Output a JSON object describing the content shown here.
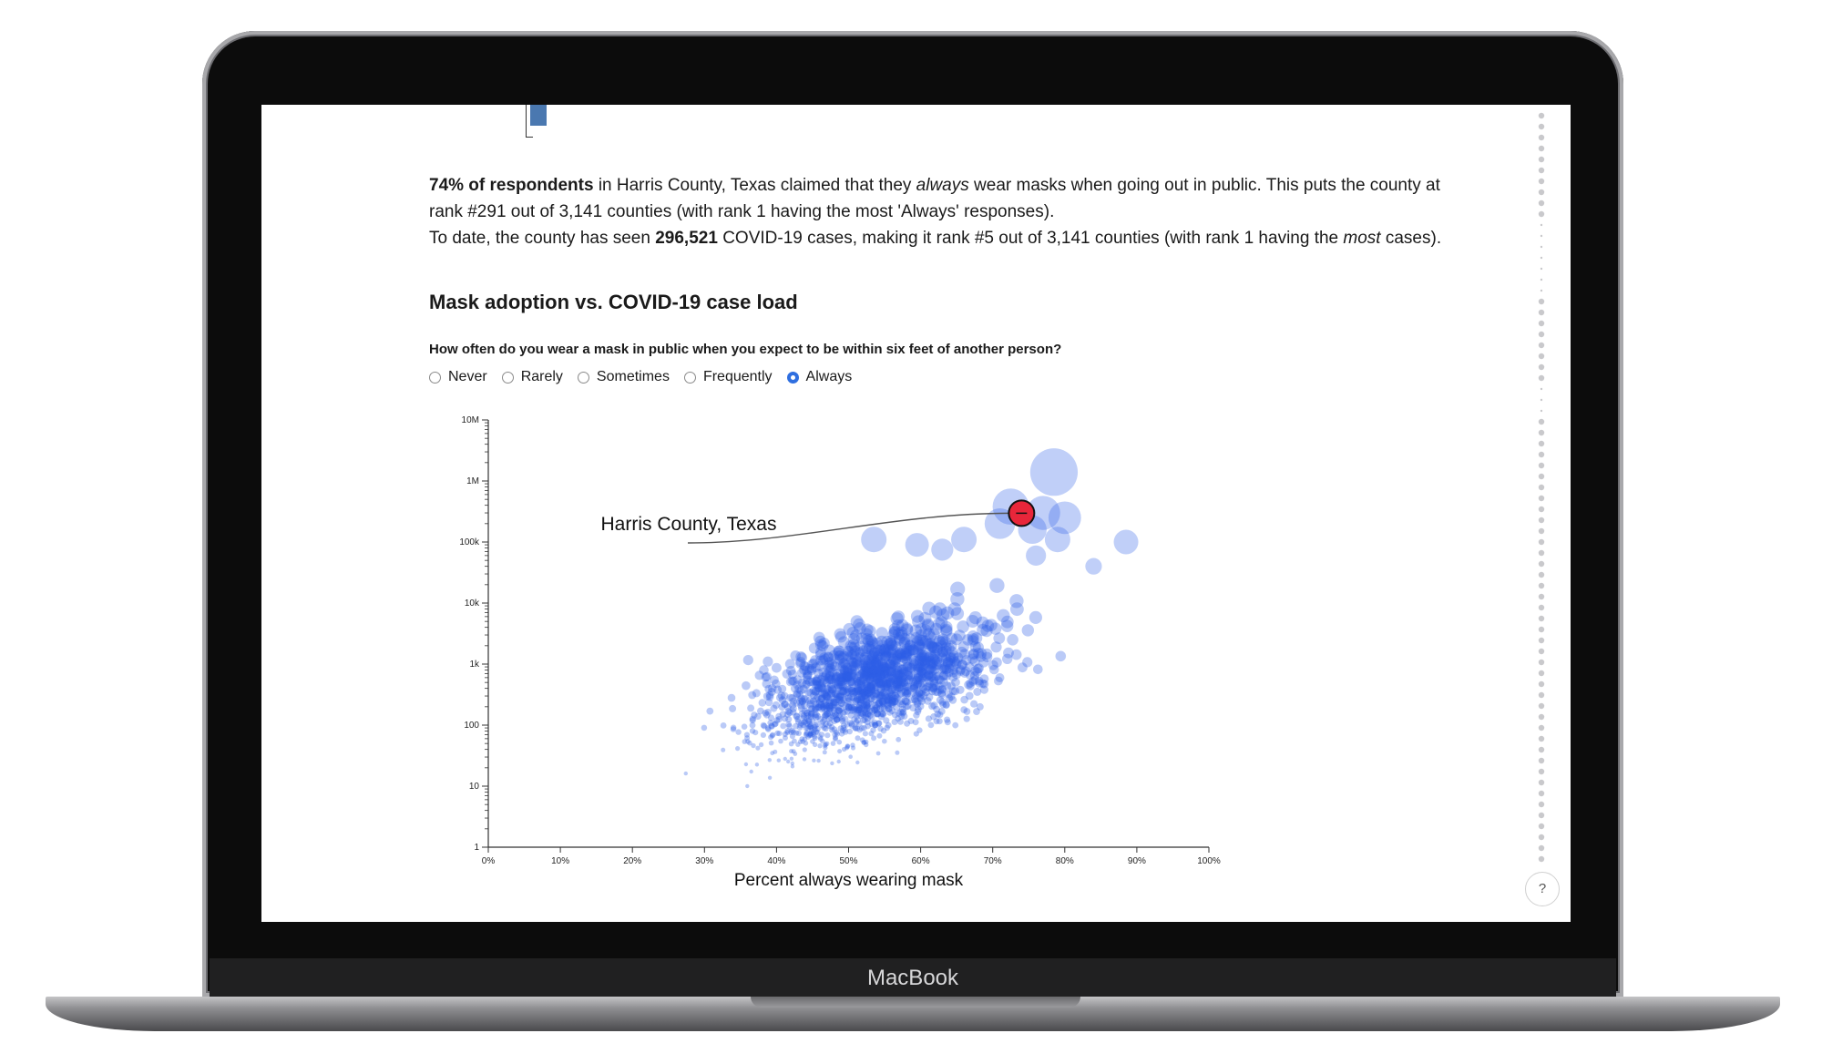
{
  "device": {
    "brand_label": "MacBook"
  },
  "article": {
    "p1": {
      "bold_lead": "74% of respondents",
      "text_a": " in Harris County, Texas claimed that they ",
      "italic_word": "always",
      "text_b": " wear masks when going out in public. This puts the county at rank #291 out of 3,141 counties (with rank 1 having the most 'Always' responses)."
    },
    "p2": {
      "text_a": "To date, the county has seen ",
      "bold_cases": "296,521",
      "text_b": " COVID-19 cases, making it rank #5 out of 3,141 counties (with rank 1 having the ",
      "italic_word": "most",
      "text_c": " cases)."
    },
    "section_title": "Mask adoption vs. COVID-19 case load",
    "question": "How often do you wear a mask in public when you expect to be within six feet of another person?",
    "options": [
      {
        "label": "Never",
        "selected": false
      },
      {
        "label": "Rarely",
        "selected": false
      },
      {
        "label": "Sometimes",
        "selected": false
      },
      {
        "label": "Frequently",
        "selected": false
      },
      {
        "label": "Always",
        "selected": true
      }
    ]
  },
  "help": {
    "label": "?"
  },
  "colors": {
    "point": "#2f5fe8",
    "highlight": "#e8263a",
    "accent": "#2f6fe0"
  },
  "chart_data": {
    "type": "scatter",
    "xlabel": "Percent always wearing mask",
    "ylabel": "",
    "x_scale": "linear",
    "y_scale": "log",
    "xlim": [
      0,
      100
    ],
    "ylim": [
      1,
      10000000
    ],
    "x_ticks": [
      "0%",
      "10%",
      "20%",
      "30%",
      "40%",
      "50%",
      "60%",
      "70%",
      "80%",
      "90%",
      "100%"
    ],
    "y_ticks": [
      "1",
      "10",
      "100",
      "1k",
      "10k",
      "100k",
      "1M",
      "10M"
    ],
    "highlight": {
      "label": "Harris County, Texas",
      "x": 74,
      "y": 296521
    },
    "large_points": [
      {
        "x": 78.5,
        "y": 1400000
      },
      {
        "x": 72.5,
        "y": 380000
      },
      {
        "x": 77,
        "y": 300000
      },
      {
        "x": 80,
        "y": 250000
      },
      {
        "x": 71,
        "y": 200000
      },
      {
        "x": 75.5,
        "y": 160000
      },
      {
        "x": 79,
        "y": 110000
      },
      {
        "x": 88.5,
        "y": 100000
      },
      {
        "x": 76,
        "y": 60000
      },
      {
        "x": 66,
        "y": 110000
      },
      {
        "x": 59.5,
        "y": 90000
      },
      {
        "x": 53.5,
        "y": 110000
      },
      {
        "x": 63,
        "y": 75000
      },
      {
        "x": 84,
        "y": 40000
      }
    ],
    "series_note": "3,141 counties"
  }
}
